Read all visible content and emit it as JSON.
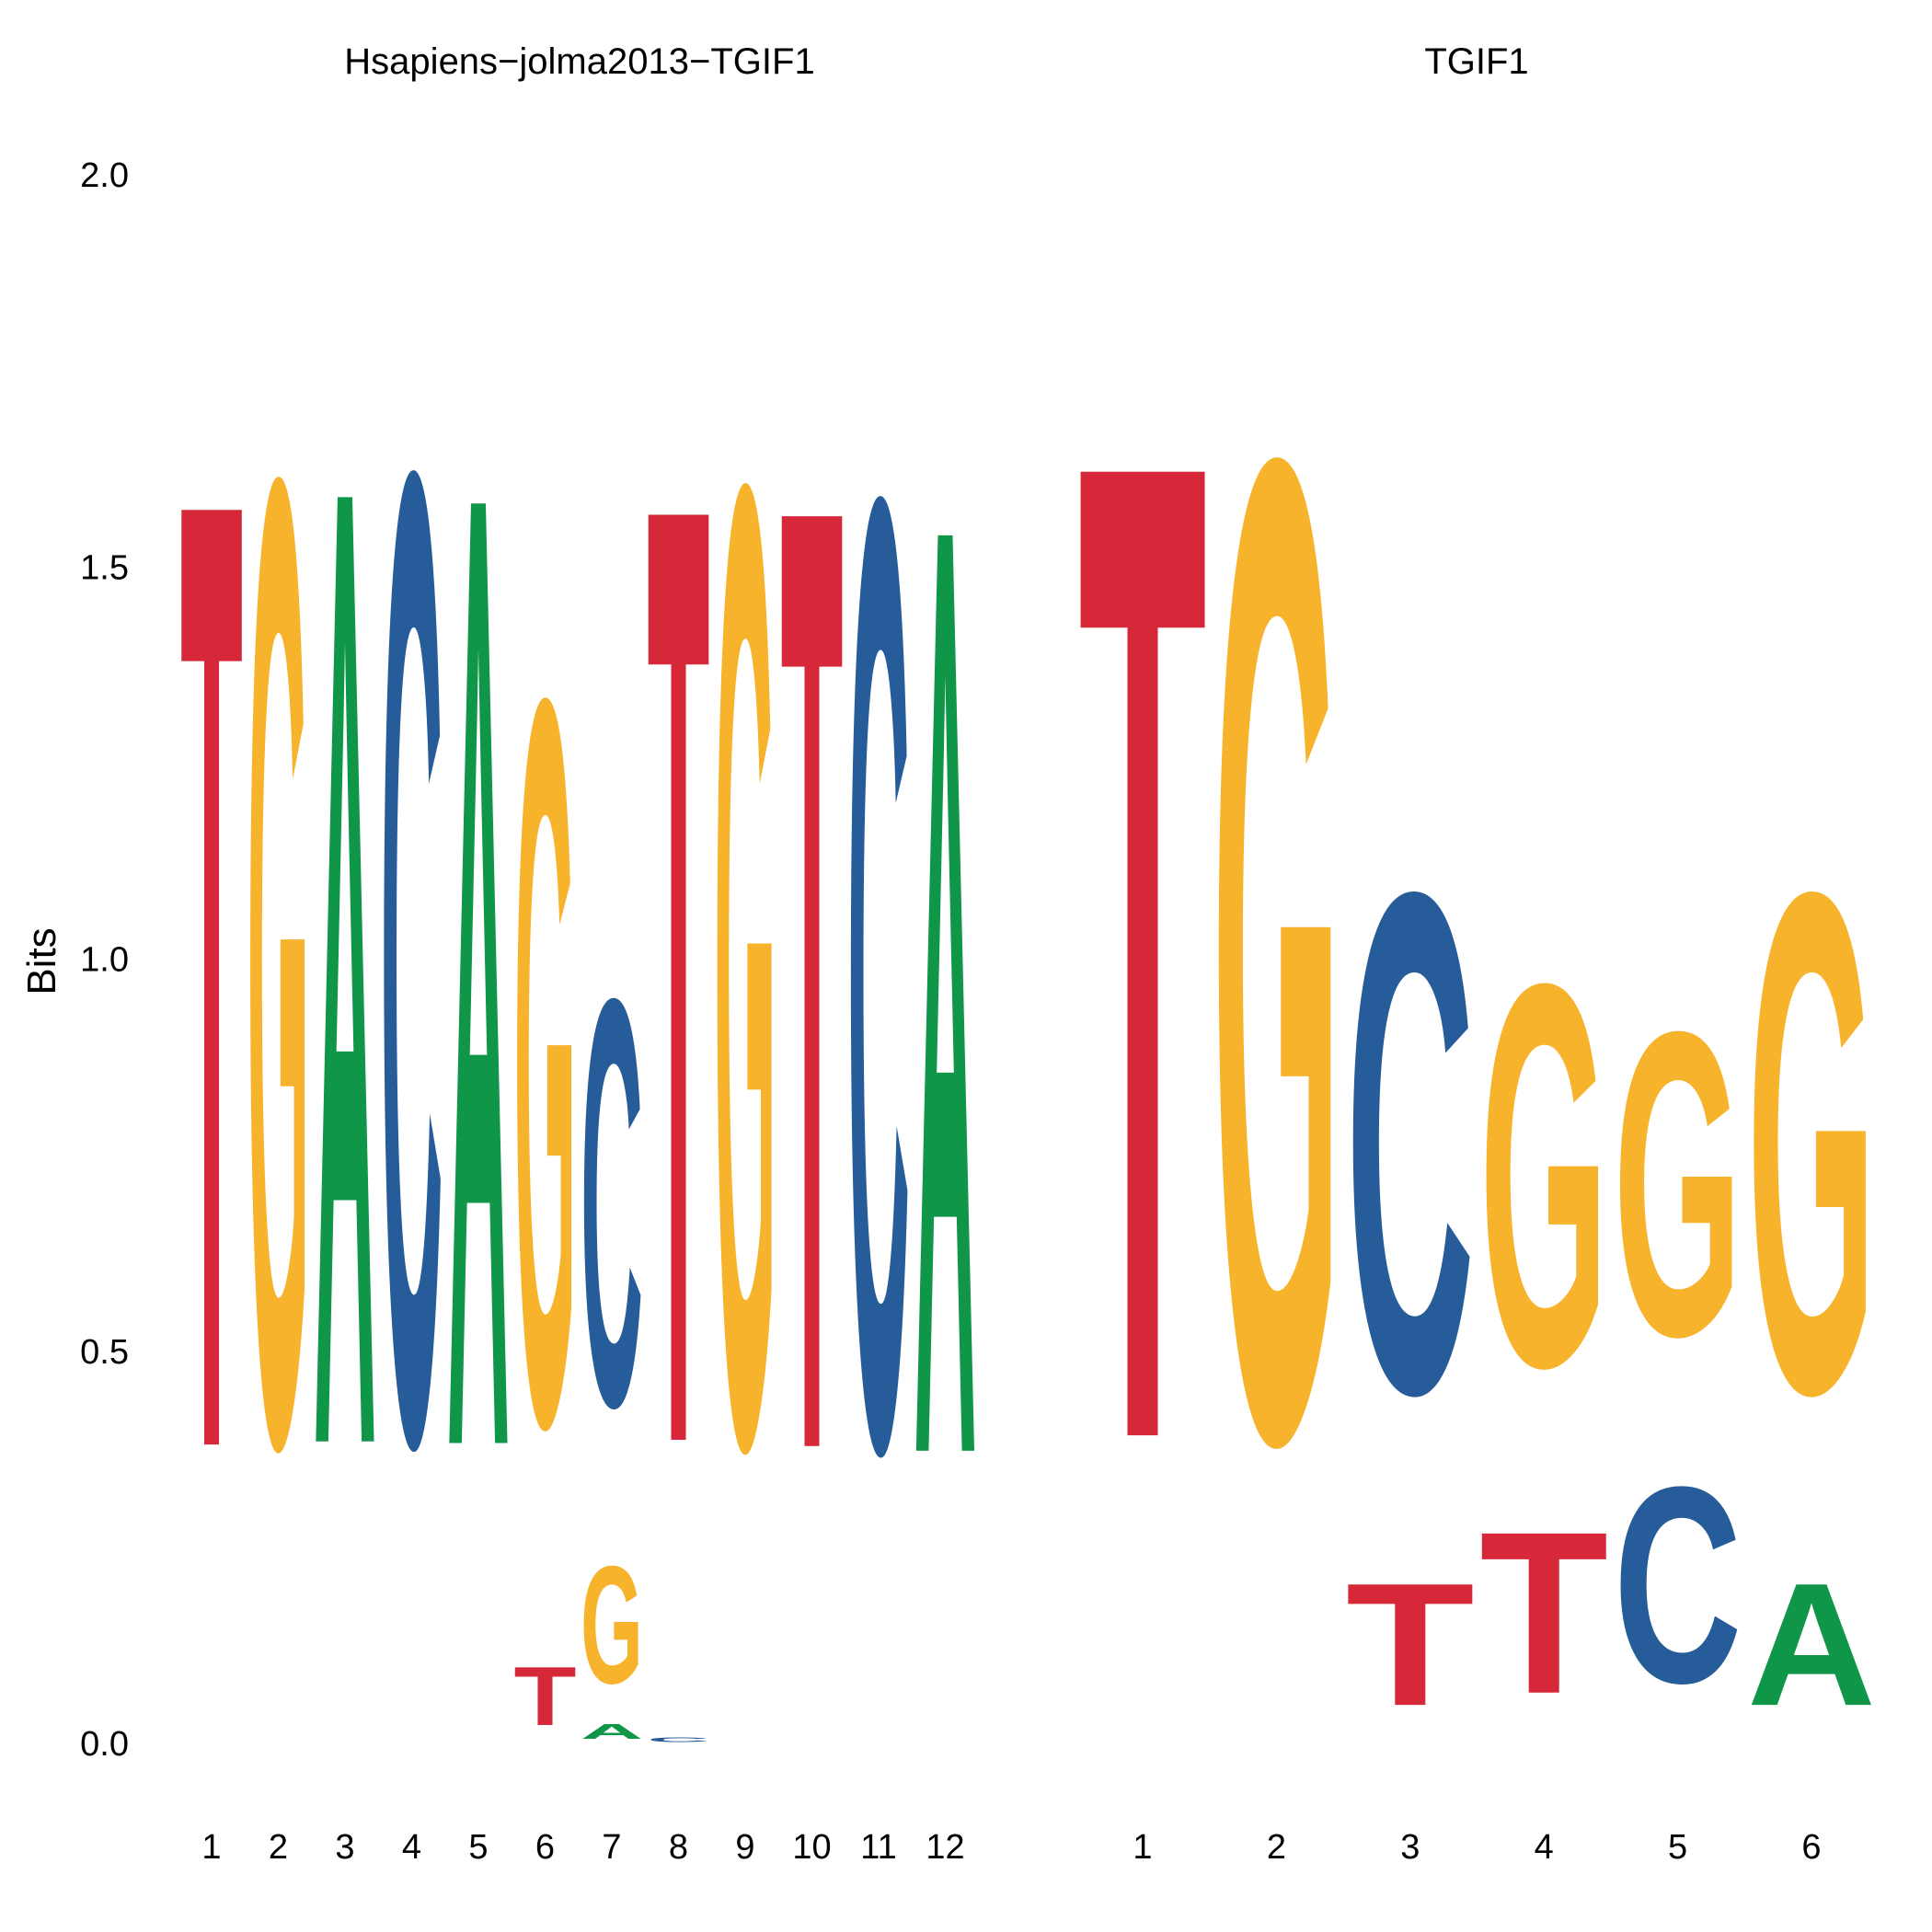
{
  "chart_data": {
    "type": "sequence-logo",
    "ylabel": "Bits",
    "ylim": [
      0,
      2
    ],
    "yticks": [
      "0.0",
      "0.5",
      "1.0",
      "1.5",
      "2.0"
    ],
    "letter_colors": {
      "A": "#109648",
      "C": "#255C99",
      "G": "#F7B32B",
      "T": "#D62839"
    },
    "panels": [
      {
        "title": "Hsapiens−jolma2013−TGIF1",
        "positions": [
          {
            "pos": "1",
            "letters": [
              {
                "base": "T",
                "bits": 1.94
              }
            ]
          },
          {
            "pos": "2",
            "letters": [
              {
                "base": "G",
                "bits": 1.97
              }
            ]
          },
          {
            "pos": "3",
            "letters": [
              {
                "base": "A",
                "bits": 1.96
              }
            ]
          },
          {
            "pos": "4",
            "letters": [
              {
                "base": "C",
                "bits": 1.98
              }
            ]
          },
          {
            "pos": "5",
            "letters": [
              {
                "base": "A",
                "bits": 1.95
              }
            ]
          },
          {
            "pos": "6",
            "letters": [
              {
                "base": "T",
                "bits": 0.12
              },
              {
                "base": "G",
                "bits": 1.48
              }
            ]
          },
          {
            "pos": "7",
            "letters": [
              {
                "base": "A",
                "bits": 0.03
              },
              {
                "base": "G",
                "bits": 0.24
              },
              {
                "base": "C",
                "bits": 0.83
              }
            ]
          },
          {
            "pos": "8",
            "letters": [
              {
                "base": "C",
                "bits": 0.01
              },
              {
                "base": "T",
                "bits": 1.92
              }
            ]
          },
          {
            "pos": "9",
            "letters": [
              {
                "base": "G",
                "bits": 1.96
              }
            ]
          },
          {
            "pos": "10",
            "letters": [
              {
                "base": "T",
                "bits": 1.93
              }
            ]
          },
          {
            "pos": "11",
            "letters": [
              {
                "base": "C",
                "bits": 1.94
              }
            ]
          },
          {
            "pos": "12",
            "letters": [
              {
                "base": "A",
                "bits": 1.9
              }
            ]
          }
        ]
      },
      {
        "title": "TGIF1",
        "positions": [
          {
            "pos": "1",
            "letters": [
              {
                "base": "T",
                "bits": 2.0
              }
            ]
          },
          {
            "pos": "2",
            "letters": [
              {
                "base": "G",
                "bits": 2.0
              }
            ]
          },
          {
            "pos": "3",
            "letters": [
              {
                "base": "T",
                "bits": 0.25
              },
              {
                "base": "C",
                "bits": 1.02
              }
            ]
          },
          {
            "pos": "4",
            "letters": [
              {
                "base": "T",
                "bits": 0.33
              },
              {
                "base": "G",
                "bits": 0.78
              }
            ]
          },
          {
            "pos": "5",
            "letters": [
              {
                "base": "C",
                "bits": 0.4
              },
              {
                "base": "G",
                "bits": 0.62
              }
            ]
          },
          {
            "pos": "6",
            "letters": [
              {
                "base": "A",
                "bits": 0.25
              },
              {
                "base": "G",
                "bits": 1.02
              }
            ]
          }
        ]
      }
    ]
  }
}
